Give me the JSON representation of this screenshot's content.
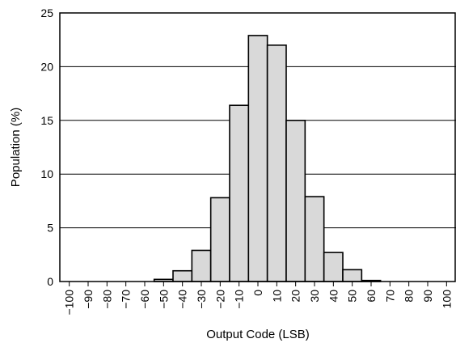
{
  "chart_data": {
    "type": "bar",
    "title": "",
    "xlabel": "Output Code (LSB)",
    "ylabel": "Population (%)",
    "ylim": [
      0,
      25
    ],
    "xlim": [
      -105,
      105
    ],
    "bin_width": 10,
    "grid": "horizontal",
    "x_ticks": [
      "−100",
      "−90",
      "−80",
      "−70",
      "−60",
      "−50",
      "−40",
      "−30",
      "−20",
      "−10",
      "0",
      "10",
      "20",
      "30",
      "40",
      "50",
      "60",
      "70",
      "80",
      "90",
      "100"
    ],
    "y_ticks": [
      "0",
      "5",
      "10",
      "15",
      "20",
      "25"
    ],
    "bins": [
      -50,
      -40,
      -30,
      -20,
      -10,
      0,
      10,
      20,
      30,
      40,
      50,
      60
    ],
    "values": [
      0.2,
      1.0,
      2.9,
      7.8,
      16.4,
      22.9,
      22.0,
      15.0,
      7.9,
      2.7,
      1.1,
      0.1
    ],
    "colors": {
      "bar_fill": "#d9d9d9",
      "bar_stroke": "#000000",
      "grid": "#000000"
    }
  }
}
